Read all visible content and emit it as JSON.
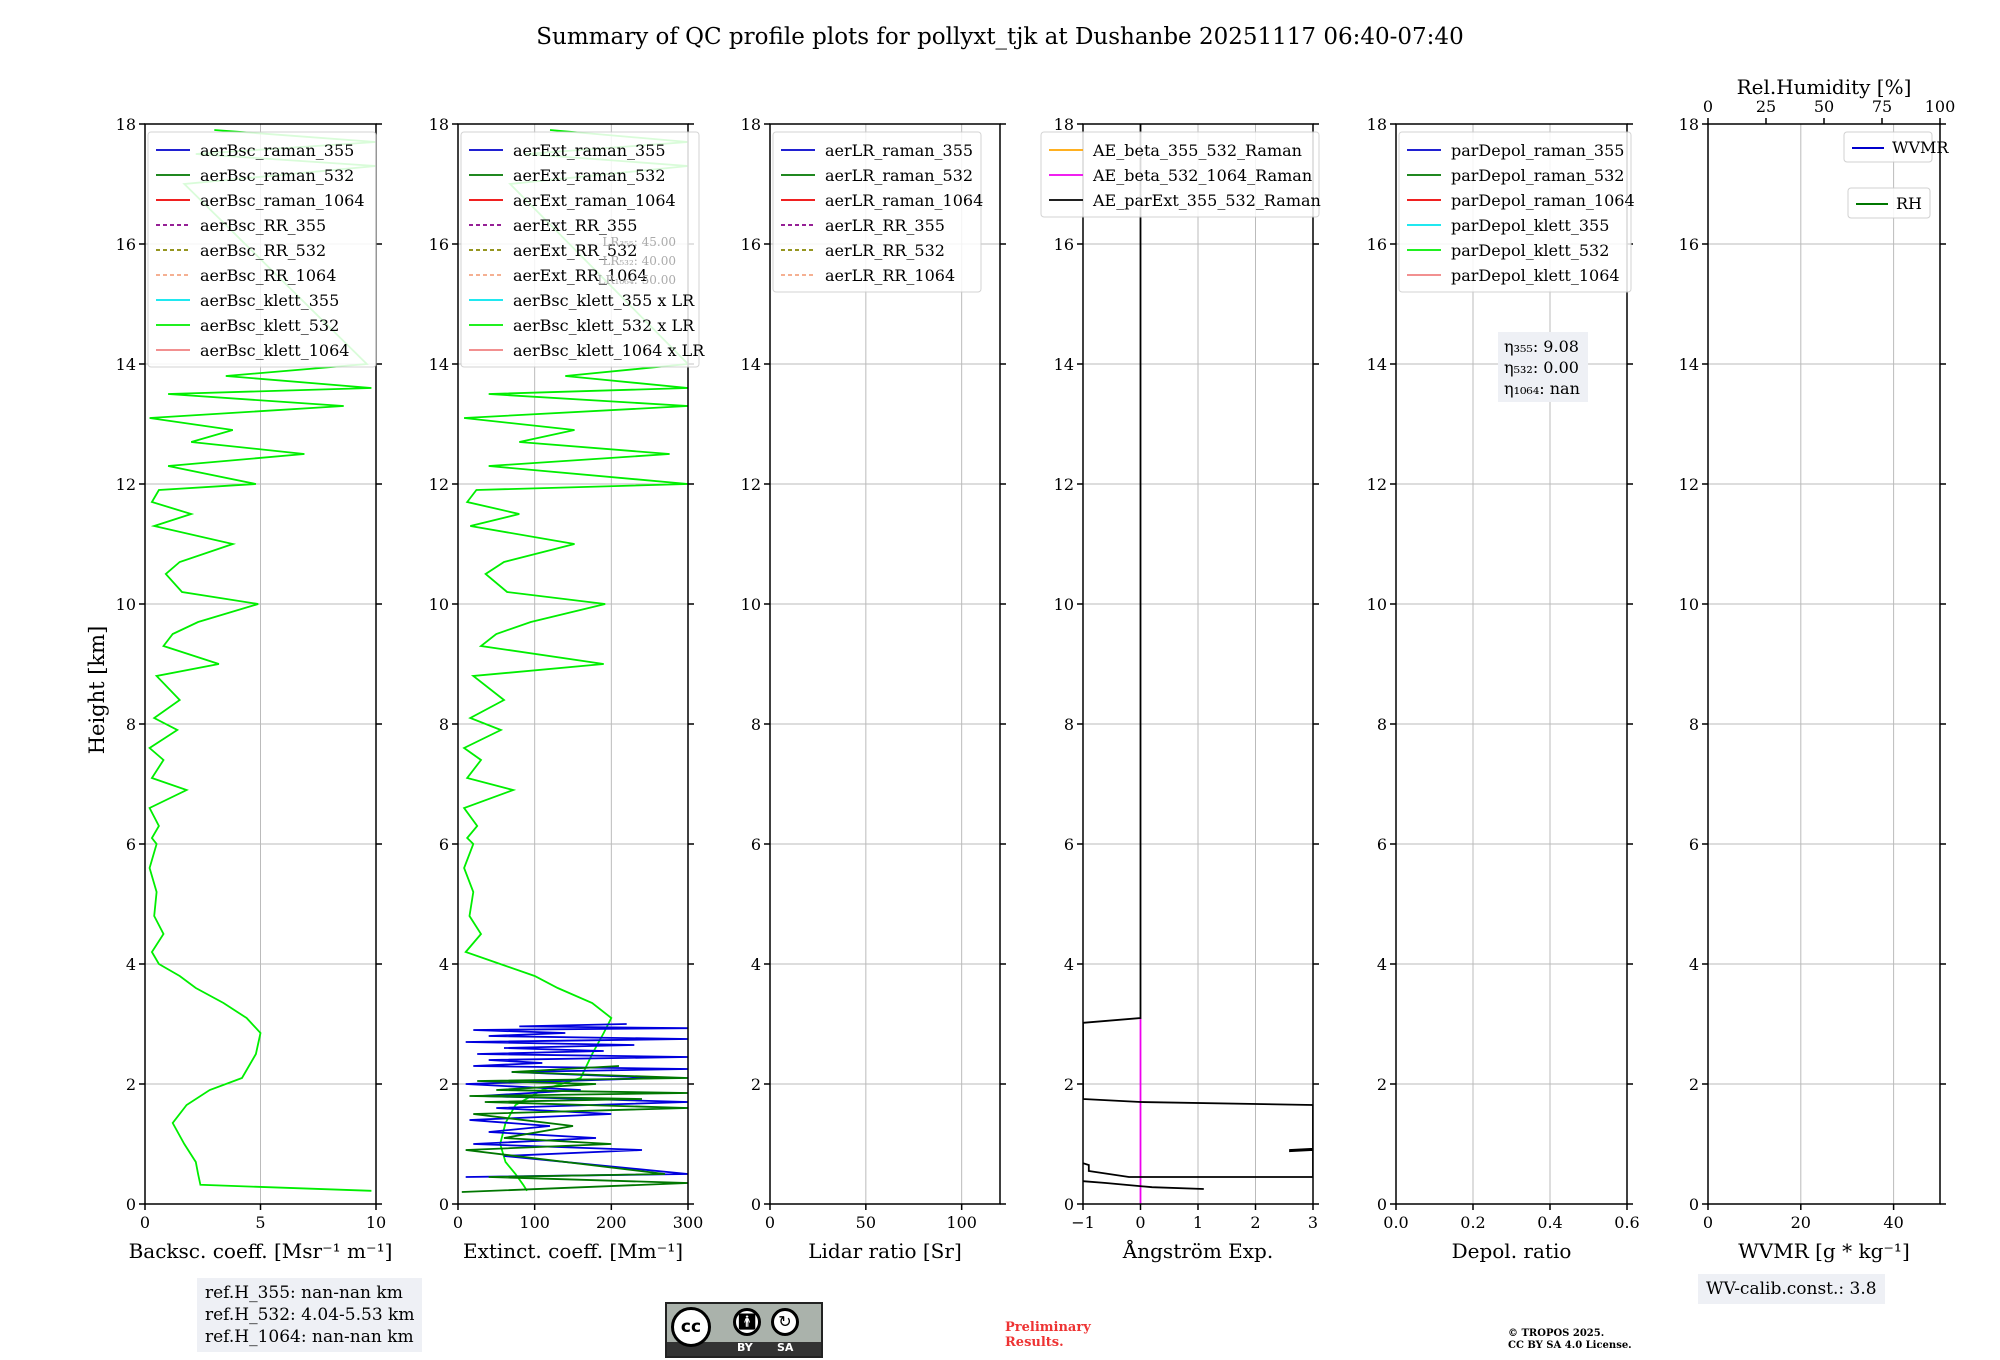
{
  "title": "Summary of QC profile plots for pollyxt_tjk at Dushanbe 20251117 06:40-07:40",
  "ylabel": "Height [km]",
  "yticks": [
    "0",
    "2",
    "4",
    "6",
    "8",
    "10",
    "12",
    "14",
    "16",
    "18"
  ],
  "chart_data": [
    {
      "type": "line",
      "name": "backscatter",
      "xlabel": "Backsc. coeff. [Msr⁻¹ m⁻¹]",
      "xlim": [
        0,
        10
      ],
      "ylim": [
        0,
        18
      ],
      "xticks": [
        "0",
        "5",
        "10"
      ],
      "legend": [
        "aerBsc_raman_355",
        "aerBsc_raman_532",
        "aerBsc_raman_1064",
        "aerBsc_RR_355",
        "aerBsc_RR_532",
        "aerBsc_RR_1064",
        "aerBsc_klett_355",
        "aerBsc_klett_532",
        "aerBsc_klett_1064"
      ],
      "series": [
        {
          "name": "aerBsc_klett_532",
          "color": "#00ee00",
          "x": [
            9.8,
            2.4,
            2.3,
            2.2,
            1.7,
            1.2,
            1.8,
            2.8,
            4.2,
            4.8,
            5.0,
            4.4,
            3.4,
            2.2,
            1.5,
            0.6,
            0.3,
            0.8,
            0.4,
            0.5,
            0.2,
            0.5,
            0.3,
            0.6,
            0.2,
            1.8,
            0.3,
            0.8,
            0.2,
            1.4,
            0.4,
            1.5,
            0.5,
            3.2,
            0.8,
            1.2,
            2.3,
            4.9,
            1.6,
            0.9,
            1.5,
            3.8,
            0.4,
            2.0,
            0.3,
            0.6,
            4.8,
            1.0,
            6.9,
            2.0,
            3.8,
            0.2,
            8.6,
            1.0,
            9.8,
            3.5,
            9.6,
            1.7,
            10,
            2.2,
            10,
            3.0
          ],
          "y": [
            0.22,
            0.32,
            0.5,
            0.7,
            1.0,
            1.35,
            1.65,
            1.9,
            2.1,
            2.5,
            2.85,
            3.1,
            3.35,
            3.6,
            3.8,
            4.0,
            4.2,
            4.5,
            4.8,
            5.2,
            5.6,
            6.0,
            6.1,
            6.3,
            6.6,
            6.9,
            7.1,
            7.4,
            7.6,
            7.9,
            8.1,
            8.4,
            8.8,
            9.0,
            9.3,
            9.5,
            9.7,
            10.0,
            10.2,
            10.5,
            10.7,
            11.0,
            11.3,
            11.5,
            11.7,
            11.9,
            12.0,
            12.3,
            12.5,
            12.7,
            12.9,
            13.1,
            13.3,
            13.5,
            13.6,
            13.8,
            14.0,
            17.0,
            17.3,
            17.5,
            17.7,
            17.9
          ]
        }
      ]
    },
    {
      "type": "line",
      "name": "extinction",
      "xlabel": "Extinct. coeff. [Mm⁻¹]",
      "xlim": [
        0,
        300
      ],
      "ylim": [
        0,
        18
      ],
      "xticks": [
        "0",
        "100",
        "200",
        "300"
      ],
      "legend": [
        "aerExt_raman_355",
        "aerExt_raman_532",
        "aerExt_raman_1064",
        "aerExt_RR_355",
        "aerExt_RR_532",
        "aerExt_RR_1064",
        "aerBsc_klett_355 x LR",
        "aerBsc_klett_532 x LR",
        "aerBsc_klett_1064 x LR"
      ],
      "lr_labels": [
        "LR₃₅₅: 45.00",
        "LR₅₃₂: 40.00",
        "LR₁₀₆₄: 50.00"
      ],
      "series": [
        {
          "name": "aerBsc_klett_532 x LR",
          "color": "#00ee00",
          "x": [
            90,
            85,
            75,
            62,
            55,
            62,
            75,
            110,
            160,
            175,
            190,
            200,
            175,
            130,
            100,
            55,
            10,
            30,
            15,
            20,
            8,
            20,
            12,
            25,
            8,
            72,
            12,
            30,
            8,
            56,
            16,
            60,
            20,
            190,
            30,
            50,
            95,
            192,
            64,
            36,
            60,
            152,
            16,
            80,
            12,
            24,
            300,
            40,
            276,
            80,
            152,
            8,
            300,
            40,
            300,
            140,
            300,
            68,
            300,
            88,
            300,
            120
          ],
          "y": [
            0.22,
            0.32,
            0.5,
            0.7,
            1.0,
            1.35,
            1.65,
            1.9,
            2.1,
            2.5,
            2.85,
            3.1,
            3.35,
            3.6,
            3.8,
            4.0,
            4.2,
            4.5,
            4.8,
            5.2,
            5.6,
            6.0,
            6.1,
            6.3,
            6.6,
            6.9,
            7.1,
            7.4,
            7.6,
            7.9,
            8.1,
            8.4,
            8.8,
            9.0,
            9.3,
            9.5,
            9.7,
            10.0,
            10.2,
            10.5,
            10.7,
            11.0,
            11.3,
            11.5,
            11.7,
            11.9,
            12.0,
            12.3,
            12.5,
            12.7,
            12.9,
            13.1,
            13.3,
            13.5,
            13.6,
            13.8,
            14.0,
            17.0,
            17.3,
            17.5,
            17.7,
            17.9
          ]
        },
        {
          "name": "aerExt_raman_355",
          "color": "#0000dd",
          "x": [
            10,
            300,
            60,
            240,
            20,
            180,
            40,
            120,
            15,
            200,
            50,
            300,
            30,
            160,
            10,
            260,
            70,
            300,
            20,
            110,
            40,
            300,
            25,
            190,
            60,
            230,
            10,
            300,
            40,
            140,
            20,
            300,
            80,
            220
          ],
          "y": [
            0.45,
            0.5,
            0.8,
            0.9,
            1.0,
            1.1,
            1.2,
            1.3,
            1.4,
            1.5,
            1.6,
            1.7,
            1.8,
            1.9,
            2.0,
            2.1,
            2.2,
            2.25,
            2.3,
            2.35,
            2.4,
            2.45,
            2.5,
            2.55,
            2.6,
            2.65,
            2.7,
            2.75,
            2.8,
            2.85,
            2.9,
            2.93,
            2.96,
            3.0
          ]
        },
        {
          "name": "aerExt_raman_532",
          "color": "#007700",
          "x": [
            5,
            300,
            40,
            270,
            10,
            200,
            60,
            150,
            20,
            300,
            35,
            240,
            15,
            300,
            50,
            180,
            25,
            300,
            70,
            210
          ],
          "y": [
            0.2,
            0.35,
            0.45,
            0.5,
            0.9,
            1.0,
            1.1,
            1.3,
            1.5,
            1.6,
            1.7,
            1.75,
            1.8,
            1.85,
            1.9,
            2.0,
            2.05,
            2.1,
            2.2,
            2.3
          ]
        }
      ]
    },
    {
      "type": "line",
      "name": "lidar_ratio",
      "xlabel": "Lidar ratio [Sr]",
      "xlim": [
        0,
        120
      ],
      "ylim": [
        0,
        18
      ],
      "xticks": [
        "0",
        "50",
        "100"
      ],
      "legend": [
        "aerLR_raman_355",
        "aerLR_raman_532",
        "aerLR_raman_1064",
        "aerLR_RR_355",
        "aerLR_RR_532",
        "aerLR_RR_1064"
      ],
      "series": []
    },
    {
      "type": "line",
      "name": "angstrom",
      "xlabel": "Ångström Exp.",
      "xlim": [
        -1,
        3
      ],
      "ylim": [
        0,
        18
      ],
      "xticks": [
        "−1",
        "0",
        "1",
        "2",
        "3"
      ],
      "legend": [
        "AE_beta_355_532_Raman",
        "AE_beta_532_1064_Raman",
        "AE_parExt_355_532_Raman"
      ],
      "series": [
        {
          "name": "AE_beta_532_1064_Raman",
          "color": "#ee00ee",
          "x": [
            0,
            0
          ],
          "y": [
            0,
            3.1
          ]
        },
        {
          "name": "AE_parExt_355_532_Raman",
          "color": "#000000",
          "x": [
            0,
            0,
            -1,
            -1,
            0,
            3,
            3,
            2.6,
            2.6,
            3,
            3,
            -0.2,
            -0.9,
            -0.9,
            -1
          ],
          "y": [
            18,
            3.1,
            3.02,
            1.75,
            1.7,
            1.65,
            0.92,
            0.9,
            0.88,
            0.9,
            0.45,
            0.45,
            0.55,
            0.65,
            0.68
          ]
        },
        {
          "name": "AE_parExt_355_532_Raman_low",
          "color": "#000000",
          "x": [
            -1,
            -0.6,
            0.2,
            1.1
          ],
          "y": [
            0.38,
            0.35,
            0.28,
            0.25
          ]
        }
      ]
    },
    {
      "type": "line",
      "name": "depol",
      "xlabel": "Depol. ratio",
      "xlim": [
        0,
        0.6
      ],
      "ylim": [
        0,
        18
      ],
      "xticks": [
        "0.0",
        "0.2",
        "0.4",
        "0.6"
      ],
      "legend": [
        "parDepol_raman_355",
        "parDepol_raman_532",
        "parDepol_raman_1064",
        "parDepol_klett_355",
        "parDepol_klett_532",
        "parDepol_klett_1064"
      ],
      "eta": [
        "η₃₅₅: 9.08",
        "η₅₃₂: 0.00",
        "η₁₀₆₄: nan"
      ],
      "series": []
    },
    {
      "type": "line",
      "name": "wvmr",
      "xlabel": "WVMR [g * kg⁻¹]",
      "xlim": [
        0,
        50
      ],
      "ylim": [
        0,
        18
      ],
      "xticks": [
        "0",
        "20",
        "40"
      ],
      "top_axis_label": "Rel.Humidity [%]",
      "top_xticks": [
        "0",
        "25",
        "50",
        "75",
        "100"
      ],
      "legend": [
        "WVMR",
        "RH"
      ],
      "series": []
    }
  ],
  "legend_colors": {
    "backscatter": [
      "#0000cc",
      "#007700",
      "#ee0000",
      "#880088",
      "#888800",
      "#f4a582",
      "#00e5ee",
      "#00ee00",
      "#f08080"
    ],
    "extinction": [
      "#0000cc",
      "#007700",
      "#ee0000",
      "#880088",
      "#888800",
      "#f4a582",
      "#00e5ee",
      "#00ee00",
      "#f08080"
    ],
    "lidar_ratio": [
      "#0000cc",
      "#007700",
      "#ee0000",
      "#880088",
      "#888800",
      "#f4a582"
    ],
    "angstrom": [
      "#ffa500",
      "#ee00ee",
      "#000000"
    ],
    "depol": [
      "#0000cc",
      "#007700",
      "#ee0000",
      "#00e5ee",
      "#00ee00",
      "#f08080"
    ]
  },
  "ref_heights": [
    "ref.H_355: nan-nan km",
    "ref.H_532: 4.04-5.53 km",
    "ref.H_1064: nan-nan km"
  ],
  "wv_calib": "WV-calib.const.: 3.8",
  "license_badge": {
    "cc": "cc",
    "by": "BY",
    "sa": "SA"
  },
  "preliminary": [
    "Preliminary",
    "Results."
  ],
  "copyright": [
    "© TROPOS 2025.",
    "CC BY SA 4.0 License."
  ]
}
